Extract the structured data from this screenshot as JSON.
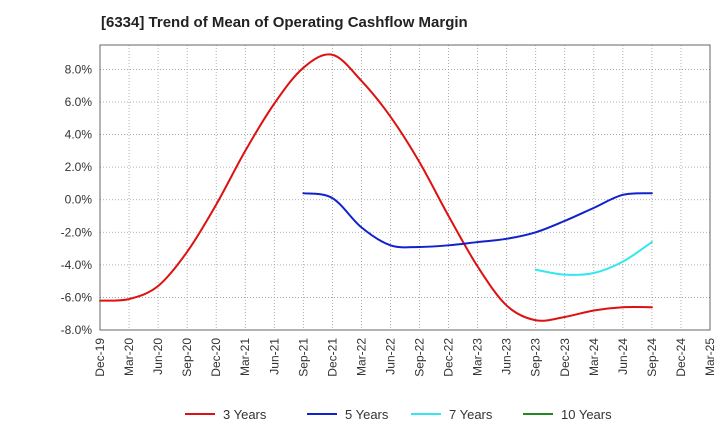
{
  "chart_data": {
    "type": "line",
    "title": "[6334]  Trend of Mean of Operating Cashflow Margin",
    "x_ticks": [
      "Dec-19",
      "Mar-20",
      "Jun-20",
      "Sep-20",
      "Dec-20",
      "Mar-21",
      "Jun-21",
      "Sep-21",
      "Dec-21",
      "Mar-22",
      "Jun-22",
      "Sep-22",
      "Dec-22",
      "Mar-23",
      "Jun-23",
      "Sep-23",
      "Dec-23",
      "Mar-24",
      "Jun-24",
      "Sep-24",
      "Dec-24",
      "Mar-25"
    ],
    "y_ticks": [
      -8.0,
      -6.0,
      -4.0,
      -2.0,
      0.0,
      2.0,
      4.0,
      6.0,
      8.0
    ],
    "y_tick_format": "percent_1dp",
    "ylim": [
      -8.0,
      9.5
    ],
    "grid": true,
    "legend_position": "bottom",
    "series": [
      {
        "name": "3 Years",
        "color": "#dd1111",
        "values": [
          -6.2,
          -6.1,
          -5.3,
          -3.2,
          -0.3,
          3.0,
          5.9,
          8.1,
          8.9,
          7.3,
          5.1,
          2.3,
          -1.0,
          -4.1,
          -6.5,
          -7.4,
          -7.2,
          -6.8,
          -6.6,
          -6.6,
          null,
          null
        ]
      },
      {
        "name": "5 Years",
        "color": "#1122cc",
        "values": [
          null,
          null,
          null,
          null,
          null,
          null,
          null,
          0.4,
          0.1,
          -1.7,
          -2.8,
          -2.9,
          -2.8,
          -2.6,
          -2.4,
          -2.0,
          -1.3,
          -0.5,
          0.3,
          0.4,
          null,
          null
        ]
      },
      {
        "name": "7 Years",
        "color": "#33e6f0",
        "values": [
          null,
          null,
          null,
          null,
          null,
          null,
          null,
          null,
          null,
          null,
          null,
          null,
          null,
          null,
          null,
          -4.3,
          -4.6,
          -4.5,
          -3.8,
          -2.6,
          null,
          null
        ]
      },
      {
        "name": "10 Years",
        "color": "#228822",
        "values": [
          null,
          null,
          null,
          null,
          null,
          null,
          null,
          null,
          null,
          null,
          null,
          null,
          null,
          null,
          null,
          null,
          null,
          null,
          null,
          null,
          null,
          null
        ]
      }
    ]
  }
}
